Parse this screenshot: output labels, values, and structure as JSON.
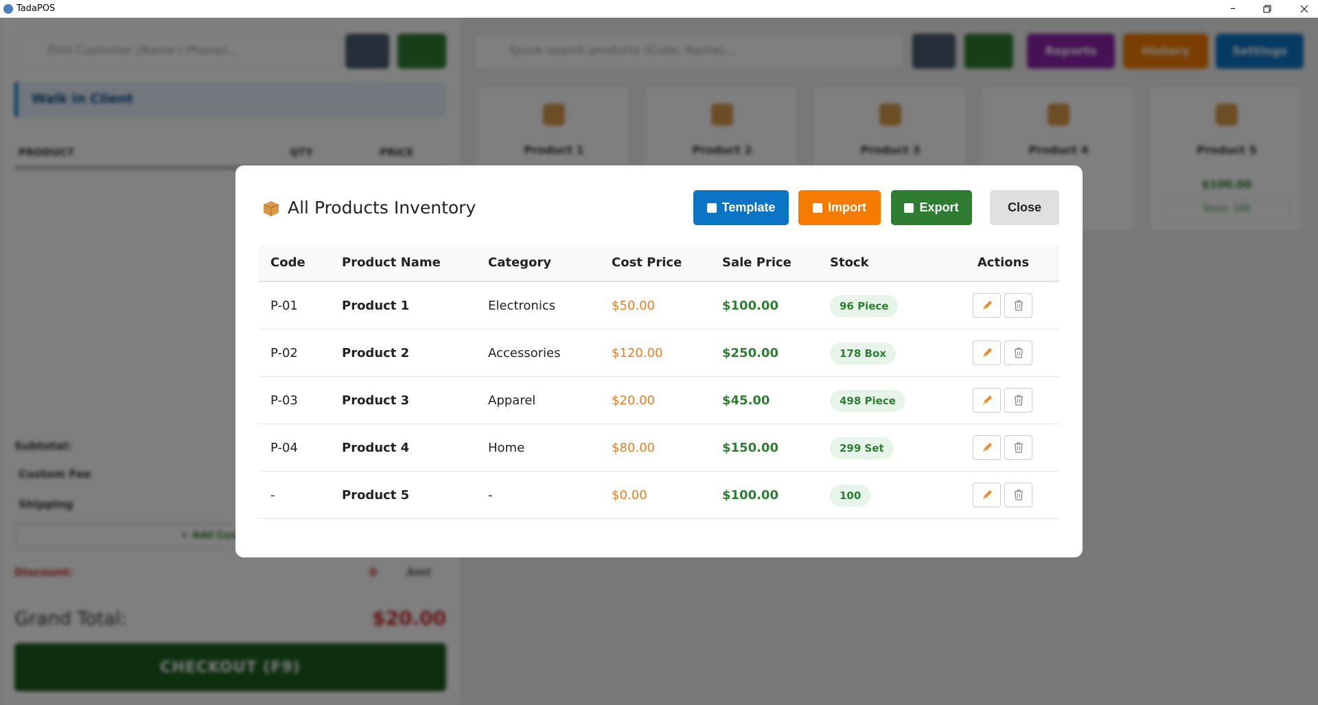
{
  "window": {
    "title": "TadaPOS"
  },
  "background": {
    "customer_search": "Find Customer (Name / Phone)...",
    "client": "Walk in Client",
    "cart_headers": [
      "PRODUCT",
      "QTY",
      "PRICE"
    ],
    "subtotal": "Subtotal:",
    "custom_fee": "Custom Fee",
    "shipping": "Shipping",
    "add_custom": "+ Add Custom Fee",
    "discount": "Discount:",
    "discount_value": "0",
    "discount_unit": "Amt",
    "grand_total_label": "Grand Total:",
    "grand_total": "$20.00",
    "checkout": "CHECKOUT (F9)",
    "product_search": "Quick search products (Code, Name)...",
    "nav": [
      "Reports",
      "History",
      "Settings"
    ],
    "cards": [
      "Product 1",
      "Product 2",
      "Product 3",
      "Product 4",
      "Product 5"
    ],
    "card_price": "$100.00",
    "card_stock": "Stock: 100"
  },
  "modal": {
    "title": "All Products Inventory",
    "buttons": [
      "Template",
      "Import",
      "Export",
      "Close"
    ],
    "table": {
      "headers": [
        "Code",
        "Product Name",
        "Category",
        "Cost Price",
        "Sale Price",
        "Stock",
        "Actions"
      ],
      "rows": [
        [
          "P-01",
          "Product 1",
          "Electronics",
          "$50.00",
          "$100.00",
          "96 Piece"
        ],
        [
          "P-02",
          "Product 2",
          "Accessories",
          "$120.00",
          "$250.00",
          "178 Box"
        ],
        [
          "P-03",
          "Product 3",
          "Apparel",
          "$20.00",
          "$45.00",
          "498 Piece"
        ],
        [
          "P-04",
          "Product 4",
          "Home",
          "$80.00",
          "$150.00",
          "299 Set"
        ],
        [
          "-",
          "Product 5",
          "-",
          "$0.00",
          "$100.00",
          "100"
        ]
      ]
    }
  }
}
